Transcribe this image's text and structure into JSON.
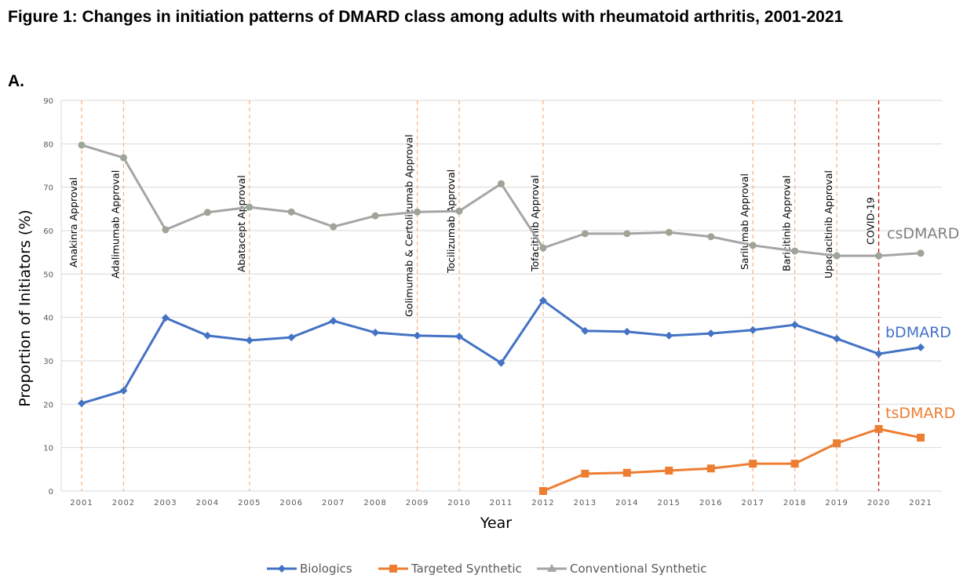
{
  "figure": {
    "title": "Figure 1: Changes in initiation patterns of DMARD class among adults with rheumatoid arthritis, 2001-2021",
    "panel_label": "A."
  },
  "chart_data": {
    "type": "line",
    "title": "Figure 1: Changes in initiation patterns of DMARD class among adults with rheumatoid arthritis, 2001-2021",
    "xlabel": "Year",
    "ylabel": "Proportion of Initiators (%)",
    "ylim": [
      0,
      90
    ],
    "yticks": [
      0,
      10,
      20,
      30,
      40,
      50,
      60,
      70,
      80,
      90
    ],
    "grid": true,
    "legend_position": "bottom",
    "x": [
      "2001",
      "2002",
      "2003",
      "2004",
      "2005",
      "2006",
      "2007",
      "2008",
      "2009",
      "2010",
      "2011",
      "2012",
      "2013",
      "2014",
      "2015",
      "2016",
      "2017",
      "2018",
      "2019",
      "2020",
      "2021"
    ],
    "series": [
      {
        "name": "Biologics",
        "end_label": "bDMARD",
        "color": "#4472C4",
        "marker": "diamond",
        "values": [
          20.2,
          23.1,
          39.9,
          35.8,
          34.7,
          35.4,
          39.2,
          36.5,
          35.8,
          35.6,
          29.5,
          43.9,
          36.9,
          36.7,
          35.8,
          36.3,
          37.1,
          38.3,
          35.1,
          31.6,
          33.1
        ]
      },
      {
        "name": "Targeted Synthetic",
        "end_label": "tsDMARD",
        "color": "#ED7D31",
        "marker": "square",
        "values": [
          null,
          null,
          null,
          null,
          null,
          null,
          null,
          null,
          null,
          null,
          null,
          0.0,
          4.0,
          4.2,
          4.7,
          5.2,
          6.3,
          6.3,
          11.0,
          14.3,
          12.3
        ]
      },
      {
        "name": "Conventional Synthetic",
        "end_label": "csDMARD",
        "color": "#A5A5A5",
        "end_label_color": "#808080",
        "marker": "triangle",
        "values": [
          79.7,
          76.8,
          60.2,
          64.2,
          65.4,
          64.3,
          60.9,
          63.4,
          64.3,
          64.5,
          70.8,
          56.0,
          59.3,
          59.3,
          59.6,
          58.6,
          56.6,
          55.3,
          54.2,
          54.2,
          54.8
        ]
      }
    ],
    "annotations": [
      {
        "year": "2001",
        "label": "Anakinra Approval",
        "color": "#F4B183"
      },
      {
        "year": "2002",
        "label": "Adalimumab  Approval",
        "color": "#F4B183"
      },
      {
        "year": "2005",
        "label": "Abatacept  Approval",
        "color": "#F4B183"
      },
      {
        "year": "2009",
        "label": "Golimumab & Certolizumab  Approval",
        "color": "#F4B183"
      },
      {
        "year": "2010",
        "label": "Tocilizumab Approval",
        "color": "#F4B183"
      },
      {
        "year": "2012",
        "label": "Tofacitinib  Approval",
        "color": "#F4B183"
      },
      {
        "year": "2017",
        "label": "Sarilumab  Approval",
        "color": "#F4B183"
      },
      {
        "year": "2018",
        "label": "Baricitinib  Approval",
        "color": "#F4B183"
      },
      {
        "year": "2019",
        "label": "Upadacitinib  Approval",
        "color": "#F4B183"
      },
      {
        "year": "2020",
        "label": "COVID-19",
        "color": "#C00000"
      }
    ]
  }
}
